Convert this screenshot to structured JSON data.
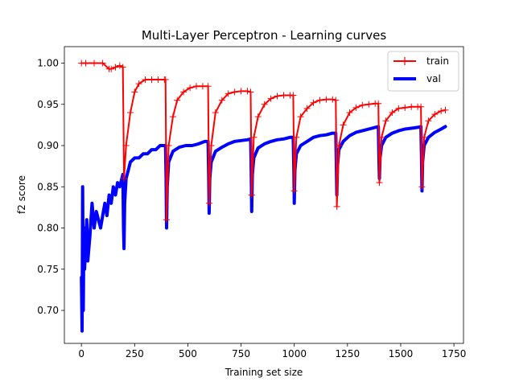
{
  "chart_data": {
    "type": "line",
    "title": "Multi-Layer Perceptron - Learning curves",
    "xlabel": "Training set size",
    "ylabel": "f2 score",
    "xlim": [
      -80,
      1795
    ],
    "ylim": [
      0.66,
      1.02
    ],
    "xticks": [
      0,
      250,
      500,
      750,
      1000,
      1250,
      1500,
      1750
    ],
    "yticks": [
      0.7,
      0.75,
      0.8,
      0.85,
      0.9,
      0.95,
      1.0
    ],
    "xtick_labels": [
      "0",
      "250",
      "500",
      "750",
      "1000",
      "1250",
      "1500",
      "1750"
    ],
    "ytick_labels": [
      "0.70",
      "0.75",
      "0.80",
      "0.85",
      "0.90",
      "0.95",
      "1.00"
    ],
    "grid": false,
    "legend_position": "top-right",
    "series": [
      {
        "name": "train",
        "color": "#ff0000",
        "marker": "plus",
        "x": [
          0,
          20,
          60,
          100,
          130,
          140,
          160,
          180,
          195,
          200,
          210,
          230,
          250,
          270,
          300,
          330,
          360,
          390,
          395,
          400,
          410,
          430,
          450,
          480,
          510,
          540,
          570,
          595,
          600,
          610,
          630,
          660,
          690,
          720,
          750,
          780,
          795,
          800,
          810,
          830,
          860,
          890,
          920,
          950,
          980,
          995,
          1000,
          1010,
          1030,
          1060,
          1090,
          1120,
          1150,
          1180,
          1195,
          1200,
          1210,
          1230,
          1260,
          1290,
          1320,
          1350,
          1380,
          1395,
          1400,
          1410,
          1430,
          1460,
          1490,
          1520,
          1550,
          1580,
          1595,
          1600,
          1610,
          1630,
          1660,
          1690,
          1710
        ],
        "y": [
          1.0,
          1.0,
          1.0,
          1.0,
          0.993,
          0.993,
          0.995,
          0.997,
          0.995,
          0.86,
          0.9,
          0.94,
          0.965,
          0.975,
          0.98,
          0.98,
          0.98,
          0.98,
          0.98,
          0.81,
          0.9,
          0.935,
          0.955,
          0.965,
          0.97,
          0.972,
          0.972,
          0.972,
          0.83,
          0.9,
          0.94,
          0.955,
          0.963,
          0.965,
          0.966,
          0.966,
          0.965,
          0.84,
          0.91,
          0.935,
          0.95,
          0.957,
          0.96,
          0.961,
          0.961,
          0.961,
          0.845,
          0.91,
          0.935,
          0.945,
          0.952,
          0.955,
          0.956,
          0.956,
          0.955,
          0.826,
          0.9,
          0.925,
          0.94,
          0.946,
          0.949,
          0.95,
          0.951,
          0.951,
          0.855,
          0.91,
          0.93,
          0.94,
          0.945,
          0.946,
          0.947,
          0.947,
          0.947,
          0.85,
          0.91,
          0.93,
          0.938,
          0.942,
          0.943
        ]
      },
      {
        "name": "val",
        "color": "#0000ff",
        "x": [
          0,
          3,
          6,
          9,
          12,
          15,
          20,
          25,
          30,
          40,
          50,
          60,
          70,
          80,
          90,
          100,
          110,
          120,
          130,
          140,
          150,
          160,
          170,
          180,
          190,
          195,
          198,
          200,
          203,
          210,
          220,
          230,
          250,
          270,
          290,
          310,
          330,
          350,
          370,
          390,
          395,
          398,
          400,
          403,
          410,
          430,
          460,
          490,
          520,
          550,
          580,
          595,
          598,
          600,
          603,
          610,
          630,
          660,
          690,
          720,
          750,
          780,
          795,
          798,
          800,
          803,
          810,
          830,
          860,
          890,
          920,
          950,
          980,
          995,
          998,
          1000,
          1003,
          1010,
          1030,
          1060,
          1090,
          1120,
          1150,
          1180,
          1195,
          1198,
          1200,
          1203,
          1210,
          1230,
          1260,
          1290,
          1320,
          1350,
          1380,
          1395,
          1398,
          1400,
          1403,
          1410,
          1430,
          1460,
          1490,
          1520,
          1550,
          1580,
          1595,
          1598,
          1600,
          1603,
          1610,
          1630,
          1660,
          1690,
          1710
        ],
        "y": [
          0.74,
          0.675,
          0.85,
          0.7,
          0.8,
          0.75,
          0.78,
          0.81,
          0.76,
          0.79,
          0.83,
          0.8,
          0.82,
          0.81,
          0.8,
          0.815,
          0.83,
          0.815,
          0.84,
          0.83,
          0.85,
          0.84,
          0.855,
          0.85,
          0.86,
          0.865,
          0.8,
          0.775,
          0.83,
          0.86,
          0.87,
          0.88,
          0.885,
          0.885,
          0.89,
          0.89,
          0.895,
          0.895,
          0.9,
          0.9,
          0.9,
          0.86,
          0.8,
          0.85,
          0.88,
          0.893,
          0.898,
          0.9,
          0.9,
          0.902,
          0.905,
          0.905,
          0.86,
          0.818,
          0.86,
          0.88,
          0.893,
          0.898,
          0.902,
          0.905,
          0.906,
          0.907,
          0.908,
          0.86,
          0.82,
          0.865,
          0.885,
          0.897,
          0.902,
          0.905,
          0.907,
          0.908,
          0.91,
          0.91,
          0.87,
          0.83,
          0.87,
          0.89,
          0.9,
          0.905,
          0.91,
          0.912,
          0.913,
          0.915,
          0.915,
          0.87,
          0.84,
          0.875,
          0.895,
          0.905,
          0.912,
          0.916,
          0.918,
          0.92,
          0.922,
          0.923,
          0.88,
          0.86,
          0.885,
          0.9,
          0.91,
          0.915,
          0.918,
          0.92,
          0.921,
          0.922,
          0.923,
          0.88,
          0.845,
          0.88,
          0.9,
          0.91,
          0.916,
          0.92,
          0.923
        ]
      }
    ]
  }
}
